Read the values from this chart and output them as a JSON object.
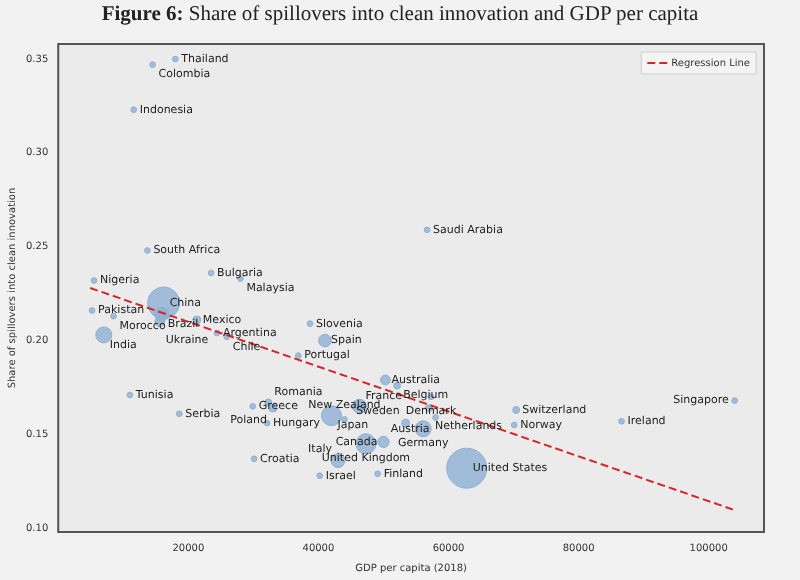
{
  "chart_data": {
    "type": "bubble",
    "title": "Figure 6: Share of spillovers into clean innovation and GDP per capita",
    "xlabel": "GDP per capita (2018)",
    "ylabel": "Share of spillovers into clean innovation",
    "xlim": [
      0,
      108500
    ],
    "xticks": [
      20000,
      40000,
      60000,
      80000,
      100000
    ],
    "ylim": [
      0.098,
      0.358
    ],
    "yticks": [
      {
        "value": 0.1,
        "label": "0.10"
      },
      0.15,
      {
        "value": 0.2,
        "label": "0.20"
      },
      0.25,
      {
        "value": 0.3,
        "label": "0.30"
      },
      0.35
    ],
    "grid": false,
    "legend": "top right",
    "series": [
      {
        "color": "#8fb0d3",
        "x": [
          18000,
          14500,
          11600,
          13700,
          5500,
          23500,
          28000,
          5200,
          16200,
          15900,
          8500,
          15600,
          21300,
          7000,
          24400,
          25900,
          38700,
          41000,
          36900,
          56700,
          50300,
          52100,
          57300,
          57000,
          70400,
          58000,
          86600,
          70100,
          104000,
          53400,
          56100,
          50000,
          47300,
          62800,
          49100,
          40200,
          43000,
          30100,
          32100,
          29900,
          32300,
          33000,
          18600,
          11000,
          42000,
          46300,
          44000
        ],
        "values": [
          0.35,
          0.347,
          0.323,
          0.248,
          0.232,
          0.236,
          0.233,
          0.216,
          0.22,
          0.214,
          0.213,
          0.21,
          0.211,
          0.203,
          0.204,
          0.202,
          0.209,
          0.2,
          0.192,
          0.259,
          0.179,
          0.176,
          0.17,
          0.164,
          0.163,
          0.159,
          0.157,
          0.155,
          0.168,
          0.156,
          0.153,
          0.146,
          0.145,
          0.132,
          0.129,
          0.128,
          0.136,
          0.137,
          0.156,
          0.165,
          0.167,
          0.164,
          0.161,
          0.171,
          0.16,
          0.165,
          0.158
        ],
        "sizes": [
          0.02,
          0.02,
          0.02,
          0.02,
          0.02,
          0.02,
          0.02,
          0.02,
          0.64,
          0.12,
          0.02,
          0.06,
          0.04,
          0.16,
          0.02,
          0.02,
          0.02,
          0.1,
          0.02,
          0.02,
          0.06,
          0.03,
          0.02,
          0.03,
          0.03,
          0.02,
          0.02,
          0.02,
          0.02,
          0.04,
          0.16,
          0.08,
          0.25,
          1,
          0.02,
          0.02,
          0.12,
          0.02,
          0.02,
          0.02,
          0.03,
          0.04,
          0.02,
          0.02,
          0.25,
          0.12,
          0.02
        ]
      },
      {
        "type": "line",
        "name": "Regression Line",
        "color": "#d62728",
        "line_style": "dashed",
        "marker": "none",
        "x": [
          4900,
          103700
        ],
        "values": [
          0.228,
          0.11
        ]
      }
    ],
    "annotations": [
      {
        "text": "Thailand",
        "x": 18000,
        "y": 0.35
      },
      {
        "text": "Colombia",
        "x": 14500,
        "y": 0.347
      },
      {
        "text": "Indonesia",
        "x": 11600,
        "y": 0.323
      },
      {
        "text": "South Africa",
        "x": 13700,
        "y": 0.248
      },
      {
        "text": "Nigeria",
        "x": 5500,
        "y": 0.232
      },
      {
        "text": "Bulgaria",
        "x": 23500,
        "y": 0.236
      },
      {
        "text": "Malaysia",
        "x": 28000,
        "y": 0.233
      },
      {
        "text": "Pakistan",
        "x": 5200,
        "y": 0.216
      },
      {
        "text": "China",
        "x": 16200,
        "y": 0.22
      },
      {
        "text": "Brazil",
        "x": 15900,
        "y": 0.214
      },
      {
        "text": "Morocco",
        "x": 8500,
        "y": 0.213
      },
      {
        "text": "Ukraine",
        "x": 15600,
        "y": 0.21
      },
      {
        "text": "Mexico",
        "x": 21300,
        "y": 0.211
      },
      {
        "text": "India",
        "x": 7000,
        "y": 0.203
      },
      {
        "text": "Argentina",
        "x": 24400,
        "y": 0.204
      },
      {
        "text": "Chile",
        "x": 25900,
        "y": 0.202
      },
      {
        "text": "Slovenia",
        "x": 38700,
        "y": 0.209
      },
      {
        "text": "Spain",
        "x": 41000,
        "y": 0.2
      },
      {
        "text": "Portugal",
        "x": 36900,
        "y": 0.192
      },
      {
        "text": "Saudi Arabia",
        "x": 56700,
        "y": 0.259
      },
      {
        "text": "Australia",
        "x": 50300,
        "y": 0.179
      },
      {
        "text": "Belgium",
        "x": 52100,
        "y": 0.176
      },
      {
        "text": "Denmark",
        "x": 57300,
        "y": 0.17
      },
      {
        "text": "Netherlands",
        "x": 57000,
        "y": 0.164
      },
      {
        "text": "Switzerland",
        "x": 70400,
        "y": 0.163
      },
      {
        "text": "Austria",
        "x": 58000,
        "y": 0.159
      },
      {
        "text": "Ireland",
        "x": 86600,
        "y": 0.157
      },
      {
        "text": "Norway",
        "x": 70100,
        "y": 0.155
      },
      {
        "text": "Singapore",
        "x": 104000,
        "y": 0.168
      },
      {
        "text": "Sweden",
        "x": 53400,
        "y": 0.156
      },
      {
        "text": "Germany",
        "x": 56100,
        "y": 0.153
      },
      {
        "text": "Canada",
        "x": 50000,
        "y": 0.146
      },
      {
        "text": "United Kingdom",
        "x": 47300,
        "y": 0.145
      },
      {
        "text": "United States",
        "x": 62800,
        "y": 0.132
      },
      {
        "text": "Finland",
        "x": 49100,
        "y": 0.129
      },
      {
        "text": "Israel",
        "x": 40200,
        "y": 0.128
      },
      {
        "text": "Italy",
        "x": 43000,
        "y": 0.136
      },
      {
        "text": "Croatia",
        "x": 30100,
        "y": 0.137
      },
      {
        "text": "Hungary",
        "x": 32100,
        "y": 0.156
      },
      {
        "text": "Greece",
        "x": 29900,
        "y": 0.165
      },
      {
        "text": "Romania",
        "x": 32300,
        "y": 0.167
      },
      {
        "text": "Poland",
        "x": 33000,
        "y": 0.164
      },
      {
        "text": "Serbia",
        "x": 18600,
        "y": 0.161
      },
      {
        "text": "Tunisia",
        "x": 11000,
        "y": 0.171
      },
      {
        "text": "Japan",
        "x": 42000,
        "y": 0.16
      },
      {
        "text": "France",
        "x": 46300,
        "y": 0.165
      },
      {
        "text": "New Zealand",
        "x": 44000,
        "y": 0.158
      }
    ]
  }
}
